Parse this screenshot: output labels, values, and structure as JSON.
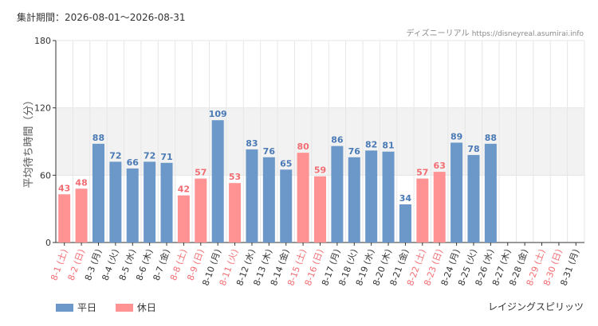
{
  "header": {
    "period": "集計期間：2026-08-01～2026-08-31",
    "source_name": "ディズニーリアル",
    "source_url": "https://disneyreal.asumirai.info"
  },
  "footer": {
    "attraction": "レイジングスピリッツ"
  },
  "colors": {
    "weekday": "#6b98c9",
    "holiday": "#ff9394",
    "weekday_text": "#4a7ab5",
    "holiday_text": "#f26d72",
    "band": "#f2f2f2",
    "grid": "#e6e6e6",
    "axis": "#333333"
  },
  "chart_data": {
    "type": "bar",
    "ylabel": "平均待ち時間（分）",
    "ylim": [
      0,
      180
    ],
    "yticks": [
      0,
      60,
      120,
      180
    ],
    "band": [
      60,
      120
    ],
    "grid": true,
    "legend_position": "bottom-left",
    "categories": [
      "8-1 (土)",
      "8-2 (日)",
      "8-3 (月)",
      "8-4 (火)",
      "8-5 (水)",
      "8-6 (木)",
      "8-7 (金)",
      "8-8 (土)",
      "8-9 (日)",
      "8-10 (月)",
      "8-11 (火)",
      "8-12 (水)",
      "8-13 (木)",
      "8-14 (金)",
      "8-15 (土)",
      "8-16 (日)",
      "8-17 (月)",
      "8-18 (火)",
      "8-19 (水)",
      "8-20 (木)",
      "8-21 (金)",
      "8-22 (土)",
      "8-23 (日)",
      "8-24 (月)",
      "8-25 (火)",
      "8-26 (水)",
      "8-27 (木)",
      "8-28 (金)",
      "8-29 (土)",
      "8-30 (日)",
      "8-31 (月)"
    ],
    "values": [
      43,
      48,
      88,
      72,
      66,
      72,
      71,
      42,
      57,
      109,
      53,
      83,
      76,
      65,
      80,
      59,
      86,
      76,
      82,
      81,
      34,
      57,
      63,
      89,
      78,
      88,
      null,
      null,
      null,
      null,
      null
    ],
    "day_type": [
      "holiday",
      "holiday",
      "weekday",
      "weekday",
      "weekday",
      "weekday",
      "weekday",
      "holiday",
      "holiday",
      "weekday",
      "holiday",
      "weekday",
      "weekday",
      "weekday",
      "holiday",
      "holiday",
      "weekday",
      "weekday",
      "weekday",
      "weekday",
      "weekday",
      "holiday",
      "holiday",
      "weekday",
      "weekday",
      "weekday",
      "weekday",
      "weekday",
      "holiday",
      "holiday",
      "weekday"
    ],
    "series": [
      {
        "name": "平日",
        "key": "weekday"
      },
      {
        "name": "休日",
        "key": "holiday"
      }
    ]
  }
}
